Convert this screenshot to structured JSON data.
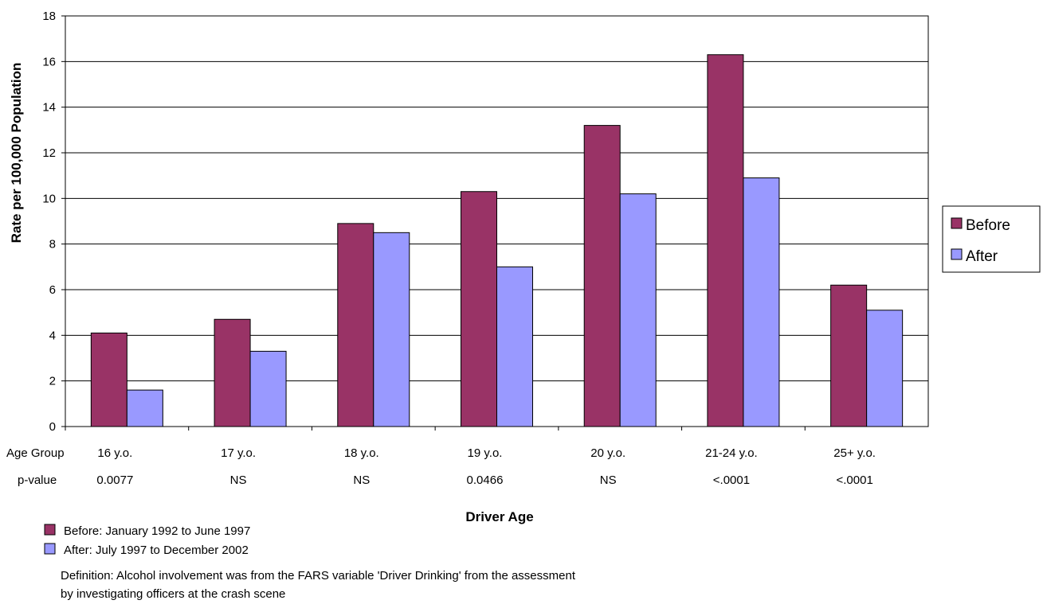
{
  "chart_data": {
    "type": "bar",
    "title": "",
    "xlabel": "Driver Age",
    "ylabel": "Rate per 100,000 Population",
    "ylim": [
      0,
      18
    ],
    "yticks": [
      0,
      2,
      4,
      6,
      8,
      10,
      12,
      14,
      16,
      18
    ],
    "categories": [
      "16 y.o.",
      "17 y.o.",
      "18 y.o.",
      "19 y.o.",
      "20 y.o.",
      "21-24 y.o.",
      "25+ y.o."
    ],
    "series": [
      {
        "name": "Before",
        "color": "#993366",
        "values": [
          4.1,
          4.7,
          8.9,
          10.3,
          13.2,
          16.3,
          6.2
        ]
      },
      {
        "name": "After",
        "color": "#9999ff",
        "values": [
          1.6,
          3.3,
          8.5,
          7.0,
          10.2,
          10.9,
          5.1
        ]
      }
    ],
    "grid": true,
    "legend_position": "right",
    "row_labels": {
      "age_group": "Age Group",
      "p_value": "p-value"
    },
    "p_values": [
      "0.0077",
      "NS",
      "NS",
      "0.0466",
      "NS",
      "<.0001",
      "<.0001"
    ]
  },
  "notes": {
    "before_period": "Before: January 1992 to June 1997",
    "after_period": "After: July 1997 to December 2002",
    "definition_line1": "Definition: Alcohol involvement was from the FARS variable 'Driver Drinking' from the assessment",
    "definition_line2": "by investigating officers at the crash scene"
  }
}
